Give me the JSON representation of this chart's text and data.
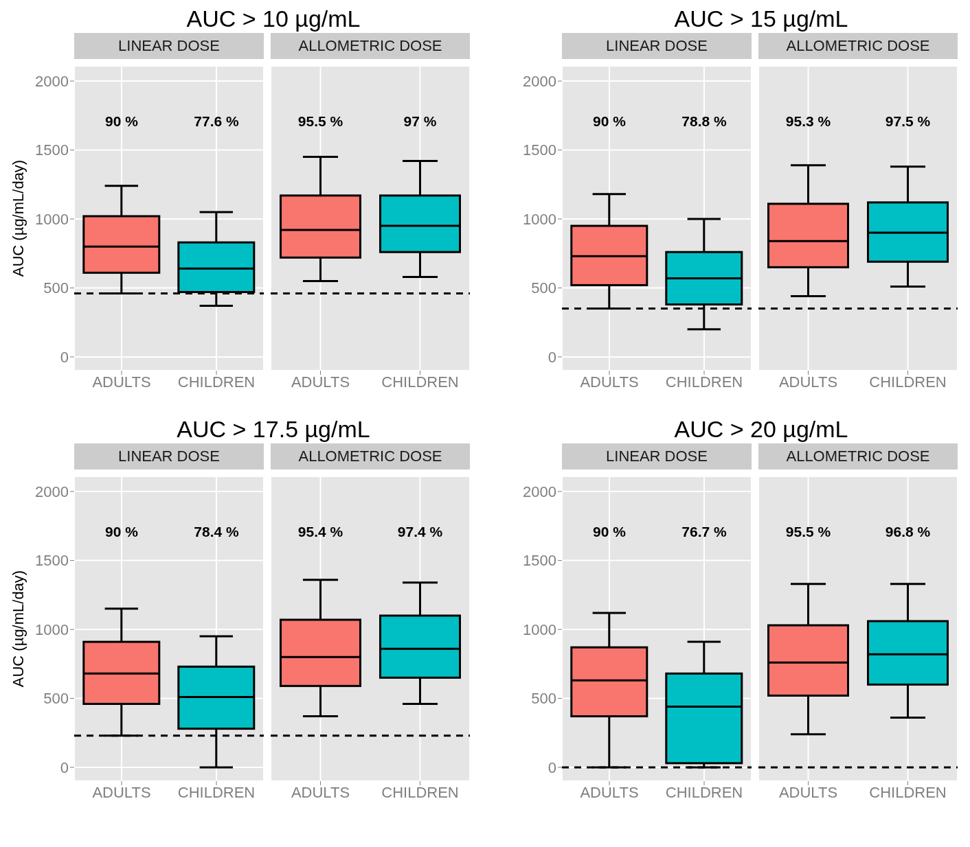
{
  "chart_data": [
    {
      "type": "box",
      "title": "AUC > 10 µg/mL",
      "subtitle": "LINEAR DOSE",
      "ylabel": "AUC (µg/mL/day)",
      "categories": [
        "ADULTS",
        "CHILDREN"
      ],
      "colors": [
        "#f8766d",
        "#00bfc4"
      ],
      "boxes": [
        {
          "low": 460,
          "q1": 610,
          "median": 800,
          "q3": 1020,
          "high": 1240
        },
        {
          "low": 370,
          "q1": 470,
          "median": 640,
          "q3": 830,
          "high": 1050
        }
      ],
      "ylim": [
        -100,
        2110
      ],
      "yticks": [
        0,
        500,
        1000,
        1500,
        2000
      ],
      "grid": true,
      "ref_lines": [
        {
          "axis": "y",
          "value": 460,
          "color": "#000000",
          "line_style": "dashed"
        }
      ],
      "annotations": [
        "90 %",
        "77.6 %"
      ]
    },
    {
      "type": "box",
      "subtitle": "ALLOMETRIC DOSE",
      "categories": [
        "ADULTS",
        "CHILDREN"
      ],
      "colors": [
        "#f8766d",
        "#00bfc4"
      ],
      "boxes": [
        {
          "low": 550,
          "q1": 720,
          "median": 920,
          "q3": 1170,
          "high": 1450
        },
        {
          "low": 580,
          "q1": 760,
          "median": 950,
          "q3": 1170,
          "high": 1420
        }
      ],
      "ylim": [
        -100,
        2110
      ],
      "yticks": [
        0,
        500,
        1000,
        1500,
        2000
      ],
      "tick_labels": "x",
      "grid": true,
      "ref_lines": [
        {
          "axis": "y",
          "value": 460,
          "color": "#000000",
          "line_style": "dashed"
        }
      ],
      "annotations": [
        "95.5 %",
        "97 %"
      ]
    },
    {
      "type": "box",
      "title": "AUC > 15 µg/mL",
      "subtitle": "LINEAR DOSE",
      "categories": [
        "ADULTS",
        "CHILDREN"
      ],
      "colors": [
        "#f8766d",
        "#00bfc4"
      ],
      "boxes": [
        {
          "low": 350,
          "q1": 520,
          "median": 730,
          "q3": 950,
          "high": 1180
        },
        {
          "low": 200,
          "q1": 380,
          "median": 570,
          "q3": 760,
          "high": 1000
        }
      ],
      "ylim": [
        -100,
        2110
      ],
      "yticks": [
        0,
        500,
        1000,
        1500,
        2000
      ],
      "grid": true,
      "ref_lines": [
        {
          "axis": "y",
          "value": 350,
          "color": "#000000",
          "line_style": "dashed"
        }
      ],
      "annotations": [
        "90 %",
        "78.8 %"
      ]
    },
    {
      "type": "box",
      "subtitle": "ALLOMETRIC DOSE",
      "categories": [
        "ADULTS",
        "CHILDREN"
      ],
      "colors": [
        "#f8766d",
        "#00bfc4"
      ],
      "boxes": [
        {
          "low": 440,
          "q1": 650,
          "median": 840,
          "q3": 1110,
          "high": 1390
        },
        {
          "low": 510,
          "q1": 690,
          "median": 900,
          "q3": 1120,
          "high": 1380
        }
      ],
      "ylim": [
        -100,
        2110
      ],
      "yticks": [
        0,
        500,
        1000,
        1500,
        2000
      ],
      "tick_labels": "x",
      "grid": true,
      "ref_lines": [
        {
          "axis": "y",
          "value": 350,
          "color": "#000000",
          "line_style": "dashed"
        }
      ],
      "annotations": [
        "95.3 %",
        "97.5 %"
      ]
    },
    {
      "type": "box",
      "title": "AUC > 17.5 µg/mL",
      "subtitle": "LINEAR DOSE",
      "ylabel": "AUC (µg/mL/day)",
      "categories": [
        "ADULTS",
        "CHILDREN"
      ],
      "colors": [
        "#f8766d",
        "#00bfc4"
      ],
      "boxes": [
        {
          "low": 230,
          "q1": 460,
          "median": 680,
          "q3": 910,
          "high": 1150
        },
        {
          "low": 0,
          "q1": 280,
          "median": 510,
          "q3": 730,
          "high": 950
        }
      ],
      "ylim": [
        -100,
        2110
      ],
      "yticks": [
        0,
        500,
        1000,
        1500,
        2000
      ],
      "grid": true,
      "ref_lines": [
        {
          "axis": "y",
          "value": 230,
          "color": "#000000",
          "line_style": "dashed"
        }
      ],
      "annotations": [
        "90 %",
        "78.4 %"
      ]
    },
    {
      "type": "box",
      "subtitle": "ALLOMETRIC DOSE",
      "categories": [
        "ADULTS",
        "CHILDREN"
      ],
      "colors": [
        "#f8766d",
        "#00bfc4"
      ],
      "boxes": [
        {
          "low": 370,
          "q1": 590,
          "median": 800,
          "q3": 1070,
          "high": 1360
        },
        {
          "low": 460,
          "q1": 650,
          "median": 860,
          "q3": 1100,
          "high": 1340
        }
      ],
      "ylim": [
        -100,
        2110
      ],
      "yticks": [
        0,
        500,
        1000,
        1500,
        2000
      ],
      "tick_labels": "x",
      "grid": true,
      "ref_lines": [
        {
          "axis": "y",
          "value": 230,
          "color": "#000000",
          "line_style": "dashed"
        }
      ],
      "annotations": [
        "95.4 %",
        "97.4 %"
      ]
    },
    {
      "type": "box",
      "title": "AUC > 20 µg/mL",
      "subtitle": "LINEAR DOSE",
      "categories": [
        "ADULTS",
        "CHILDREN"
      ],
      "colors": [
        "#f8766d",
        "#00bfc4"
      ],
      "boxes": [
        {
          "low": 0,
          "q1": 370,
          "median": 630,
          "q3": 870,
          "high": 1120
        },
        {
          "low": 0,
          "q1": 30,
          "median": 440,
          "q3": 680,
          "high": 910
        }
      ],
      "ylim": [
        -100,
        2110
      ],
      "yticks": [
        0,
        500,
        1000,
        1500,
        2000
      ],
      "grid": true,
      "ref_lines": [
        {
          "axis": "y",
          "value": 0,
          "color": "#000000",
          "line_style": "dashed"
        }
      ],
      "annotations": [
        "90 %",
        "76.7 %"
      ]
    },
    {
      "type": "box",
      "subtitle": "ALLOMETRIC DOSE",
      "categories": [
        "ADULTS",
        "CHILDREN"
      ],
      "colors": [
        "#f8766d",
        "#00bfc4"
      ],
      "boxes": [
        {
          "low": 240,
          "q1": 520,
          "median": 760,
          "q3": 1030,
          "high": 1330
        },
        {
          "low": 360,
          "q1": 600,
          "median": 820,
          "q3": 1060,
          "high": 1330
        }
      ],
      "ylim": [
        -100,
        2110
      ],
      "yticks": [
        0,
        500,
        1000,
        1500,
        2000
      ],
      "tick_labels": "x",
      "grid": true,
      "ref_lines": [
        {
          "axis": "y",
          "value": 0,
          "color": "#000000",
          "line_style": "dashed"
        }
      ],
      "annotations": [
        "95.5 %",
        "96.8 %"
      ]
    }
  ]
}
